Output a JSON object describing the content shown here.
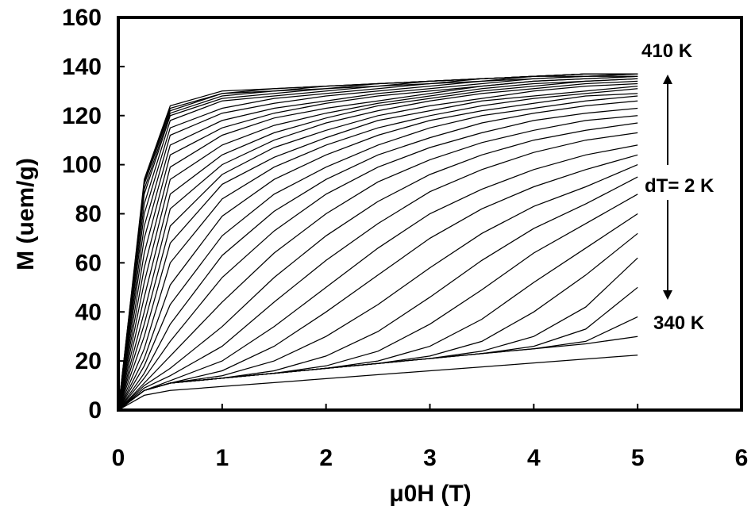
{
  "chart_data": {
    "type": "line",
    "title": "",
    "xlabel": "μ0H (T)",
    "ylabel": "M (uem/g)",
    "xlim": [
      0,
      6
    ],
    "ylim": [
      0,
      160
    ],
    "xticks": [
      0,
      1,
      2,
      3,
      4,
      5,
      6
    ],
    "yticks": [
      0,
      20,
      40,
      60,
      80,
      100,
      120,
      140,
      160
    ],
    "grid": false,
    "line_color": "#000000",
    "annotations": {
      "top": "410 K",
      "middle": "dT= 2 K",
      "bottom": "340 K"
    },
    "temperature_range_K": [
      340,
      410
    ],
    "temperature_step_K": 2,
    "x": [
      0,
      0.25,
      0.5,
      1,
      1.5,
      2,
      2.5,
      3,
      3.5,
      4,
      4.5,
      5
    ],
    "series": [
      {
        "values": [
          0,
          6,
          8,
          9.6,
          11.2,
          12.8,
          14.4,
          16,
          17.6,
          19.2,
          20.8,
          22.4
        ]
      },
      {
        "values": [
          0,
          8,
          11,
          13,
          15,
          17,
          19,
          21,
          23,
          25,
          27,
          30
        ]
      },
      {
        "values": [
          0,
          8,
          11,
          13,
          15,
          17,
          19,
          21,
          23,
          25,
          28,
          38
        ]
      },
      {
        "values": [
          0,
          8,
          11,
          13,
          15,
          17,
          19,
          21,
          23,
          26,
          33,
          50
        ]
      },
      {
        "values": [
          0,
          8,
          11,
          13,
          15,
          17,
          19,
          21,
          24,
          30,
          42,
          62
        ]
      },
      {
        "values": [
          0,
          8,
          11,
          13,
          15,
          17,
          19,
          22,
          28,
          40,
          55,
          72
        ]
      },
      {
        "values": [
          0,
          8,
          11,
          13,
          15,
          17,
          20,
          26,
          37,
          52,
          66,
          80
        ]
      },
      {
        "values": [
          0,
          8,
          11,
          13,
          15,
          18,
          24,
          35,
          49,
          64,
          76,
          88
        ]
      },
      {
        "values": [
          0,
          8,
          11,
          13,
          16,
          22,
          32,
          46,
          61,
          74,
          84,
          95
        ]
      },
      {
        "values": [
          0,
          8,
          11,
          14,
          20,
          30,
          43,
          58,
          72,
          83,
          91,
          100
        ]
      },
      {
        "values": [
          0,
          8,
          11,
          16,
          26,
          40,
          55,
          70,
          82,
          91,
          98,
          104
        ]
      },
      {
        "values": [
          0,
          8,
          12,
          20,
          34,
          50,
          66,
          80,
          90,
          98,
          104,
          108
        ]
      },
      {
        "values": [
          0,
          9,
          14,
          26,
          44,
          61,
          76,
          89,
          98,
          105,
          110,
          113
        ]
      },
      {
        "values": [
          0,
          10,
          17,
          34,
          54,
          71,
          85,
          96,
          104,
          110,
          114,
          117
        ]
      },
      {
        "values": [
          0,
          11,
          22,
          44,
          64,
          80,
          93,
          102,
          109,
          114,
          118,
          120
        ]
      },
      {
        "values": [
          0,
          13,
          28,
          54,
          73,
          88,
          99,
          107,
          113,
          118,
          121,
          123
        ]
      },
      {
        "values": [
          0,
          15,
          35,
          63,
          81,
          94,
          104,
          111,
          117,
          121,
          124,
          126
        ]
      },
      {
        "values": [
          0,
          18,
          43,
          71,
          88,
          99,
          108,
          115,
          120,
          123,
          126,
          128
        ]
      },
      {
        "values": [
          0,
          21,
          51,
          79,
          94,
          104,
          112,
          118,
          122,
          125,
          128,
          129
        ]
      },
      {
        "values": [
          0,
          25,
          60,
          86,
          99,
          108,
          115,
          120,
          124,
          127,
          129,
          131
        ]
      },
      {
        "values": [
          0,
          30,
          68,
          92,
          103,
          111,
          118,
          122,
          126,
          128,
          130,
          132
        ]
      },
      {
        "values": [
          0,
          35,
          75,
          96,
          107,
          114,
          120,
          124,
          127,
          130,
          132,
          133
        ]
      },
      {
        "values": [
          0,
          40,
          82,
          100,
          110,
          117,
          122,
          126,
          129,
          131,
          133,
          134
        ]
      },
      {
        "values": [
          0,
          46,
          88,
          104,
          113,
          119,
          124,
          127,
          130,
          132,
          134,
          135
        ]
      },
      {
        "values": [
          0,
          52,
          94,
          108,
          116,
          121,
          125,
          128,
          131,
          133,
          134,
          135
        ]
      },
      {
        "values": [
          0,
          58,
          99,
          112,
          119,
          123,
          126,
          129,
          132,
          134,
          135,
          136
        ]
      },
      {
        "values": [
          0,
          64,
          104,
          115,
          121,
          125,
          128,
          130,
          132,
          134,
          135,
          136
        ]
      },
      {
        "values": [
          0,
          70,
          108,
          118,
          123,
          126,
          129,
          131,
          133,
          135,
          136,
          136
        ]
      },
      {
        "values": [
          0,
          75,
          112,
          121,
          125,
          128,
          130,
          132,
          134,
          135,
          136,
          137
        ]
      },
      {
        "values": [
          0,
          80,
          115,
          123,
          127,
          129,
          131,
          133,
          134,
          136,
          136,
          137
        ]
      },
      {
        "values": [
          0,
          84,
          118,
          126,
          128,
          130,
          132,
          133,
          135,
          136,
          137,
          137
        ]
      },
      {
        "values": [
          0,
          88,
          120,
          127,
          129,
          131,
          132,
          134,
          135,
          136,
          137,
          137
        ]
      },
      {
        "values": [
          0,
          90,
          121,
          128,
          130,
          131,
          133,
          134,
          135,
          136,
          137,
          137
        ]
      },
      {
        "values": [
          0,
          92,
          122,
          129,
          130,
          132,
          133,
          134,
          135,
          136,
          137,
          137
        ]
      },
      {
        "values": [
          0,
          93,
          123,
          129,
          131,
          132,
          133,
          134,
          135,
          136,
          137,
          137
        ]
      },
      {
        "values": [
          0,
          94,
          124,
          130,
          131,
          132,
          133,
          134,
          135,
          136,
          137,
          137
        ]
      }
    ]
  }
}
